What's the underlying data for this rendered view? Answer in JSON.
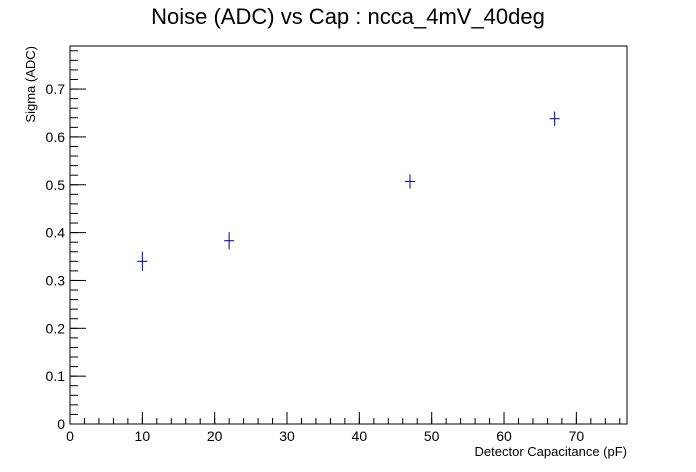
{
  "chart_data": {
    "type": "scatter",
    "title": "Noise (ADC) vs Cap : ncca_4mV_40deg",
    "xlabel": "Detector Capacitance (pF)",
    "ylabel": "Sigma (ADC)",
    "xlim": [
      0,
      77
    ],
    "ylim": [
      0,
      0.79
    ],
    "x_major_ticks": [
      0,
      10,
      20,
      30,
      40,
      50,
      60,
      70
    ],
    "x_minor_step": 2,
    "y_major_ticks": [
      0,
      0.1,
      0.2,
      0.3,
      0.4,
      0.5,
      0.6,
      0.7
    ],
    "y_minor_step": 0.02,
    "x_tick_labels": [
      "0",
      "10",
      "20",
      "30",
      "40",
      "50",
      "60",
      "70"
    ],
    "y_tick_labels": [
      "0",
      "0.1",
      "0.2",
      "0.3",
      "0.4",
      "0.5",
      "0.6",
      "0.7"
    ],
    "grid": false,
    "legend": "none",
    "marker_color": "#000080",
    "points": [
      {
        "x": 10,
        "y": 0.34,
        "yerr": 0.02
      },
      {
        "x": 22,
        "y": 0.383,
        "yerr": 0.018
      },
      {
        "x": 47,
        "y": 0.507,
        "yerr": 0.015
      },
      {
        "x": 67,
        "y": 0.638,
        "yerr": 0.015
      }
    ]
  }
}
